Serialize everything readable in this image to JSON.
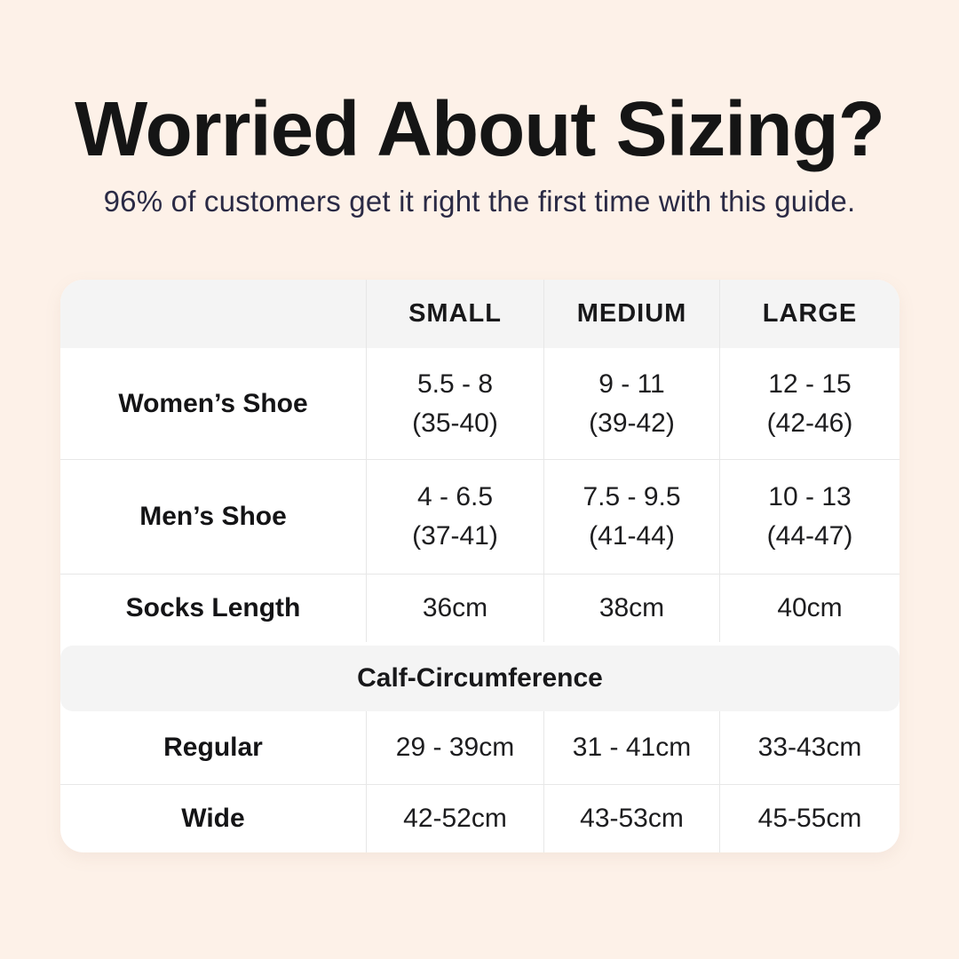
{
  "header": {
    "title": "Worried About Sizing?",
    "subtitle": "96% of customers get it right the first time with this guide."
  },
  "table": {
    "columns": {
      "c1": "SMALL",
      "c2": "MEDIUM",
      "c3": "LARGE"
    },
    "rows": {
      "womens": {
        "label": "Women’s Shoe",
        "small_1": "5.5 - 8",
        "small_2": "(35-40)",
        "medium_1": "9 - 11",
        "medium_2": "(39-42)",
        "large_1": "12 - 15",
        "large_2": "(42-46)"
      },
      "mens": {
        "label": "Men’s Shoe",
        "small_1": "4 - 6.5",
        "small_2": "(37-41)",
        "medium_1": "7.5 - 9.5",
        "medium_2": "(41-44)",
        "large_1": "10 - 13",
        "large_2": "(44-47)"
      },
      "socks": {
        "label": "Socks Length",
        "small": "36cm",
        "medium": "38cm",
        "large": "40cm"
      },
      "section": {
        "label": "Calf-Circumference"
      },
      "regular": {
        "label": "Regular",
        "small": "29 - 39cm",
        "medium": "31 - 41cm",
        "large": "33-43cm"
      },
      "wide": {
        "label": "Wide",
        "small": "42-52cm",
        "medium": "43-53cm",
        "large": "45-55cm"
      }
    }
  },
  "colors": {
    "page_background": "#fdf1e8",
    "table_background": "#ffffff",
    "header_band": "#f4f4f4",
    "divider": "#e7e7e7",
    "title_text": "#151515",
    "subtitle_text": "#2a2a45",
    "table_text": "#1d1d1f"
  },
  "chart_data": {
    "type": "table",
    "title": "Worried About Sizing?",
    "subtitle": "96% of customers get it right the first time with this guide.",
    "columns": [
      "",
      "SMALL",
      "MEDIUM",
      "LARGE"
    ],
    "sections": [
      {
        "rows": [
          {
            "label": "Women’s Shoe",
            "values": [
              "5.5 - 8 (35-40)",
              "9 - 11 (39-42)",
              "12 - 15 (42-46)"
            ]
          },
          {
            "label": "Men’s Shoe",
            "values": [
              "4 - 6.5 (37-41)",
              "7.5 - 9.5 (41-44)",
              "10 - 13 (44-47)"
            ]
          },
          {
            "label": "Socks Length",
            "values": [
              "36cm",
              "38cm",
              "40cm"
            ]
          }
        ]
      },
      {
        "section_header": "Calf-Circumference",
        "rows": [
          {
            "label": "Regular",
            "values": [
              "29 - 39cm",
              "31 - 41cm",
              "33-43cm"
            ]
          },
          {
            "label": "Wide",
            "values": [
              "42-52cm",
              "43-53cm",
              "45-55cm"
            ]
          }
        ]
      }
    ]
  }
}
